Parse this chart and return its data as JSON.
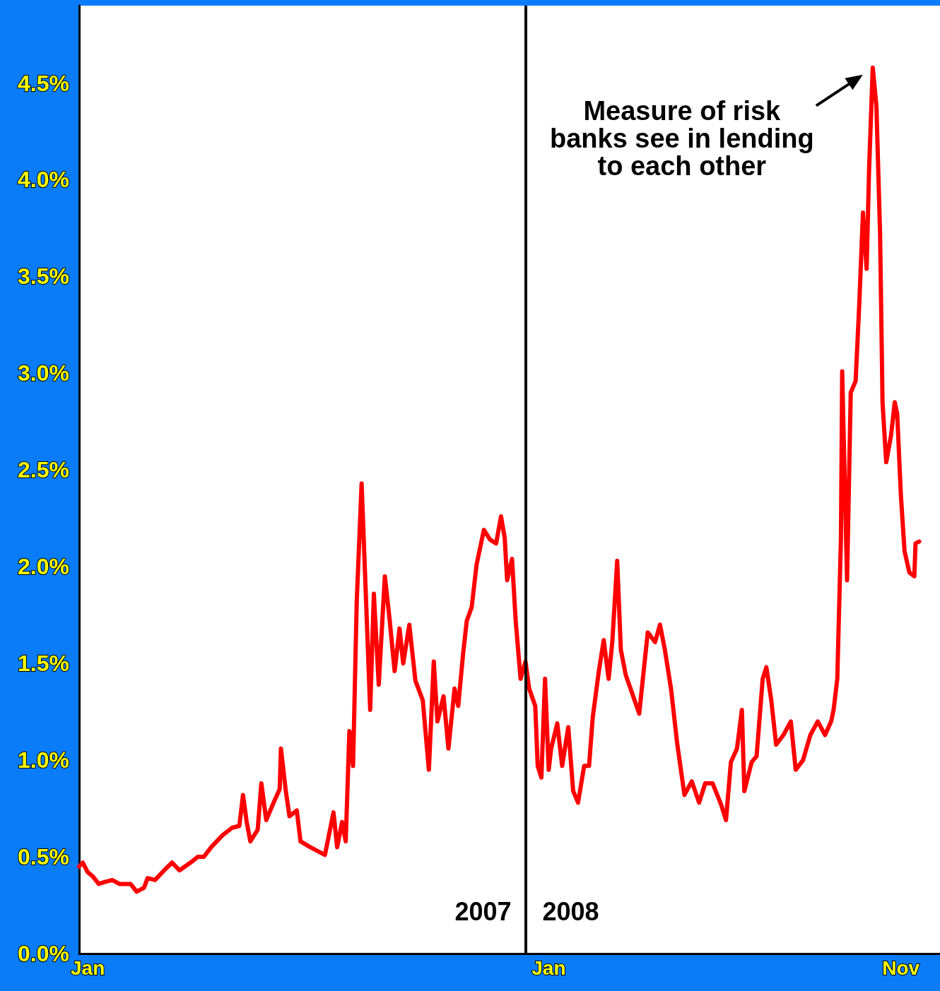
{
  "chart_data": {
    "type": "line",
    "color": "#ff0000",
    "marker": "none",
    "line_style": "solid",
    "grid": false,
    "x": [
      "2007-01-01",
      "2007-01-04",
      "2007-01-08",
      "2007-01-12",
      "2007-01-17",
      "2007-01-22",
      "2007-01-28",
      "2007-02-03",
      "2007-02-12",
      "2007-02-17",
      "2007-02-23",
      "2007-02-26",
      "2007-03-04",
      "2007-03-13",
      "2007-03-18",
      "2007-03-24",
      "2007-04-02",
      "2007-04-08",
      "2007-04-13",
      "2007-04-19",
      "2007-04-28",
      "2007-05-06",
      "2007-05-12",
      "2007-05-15",
      "2007-05-18",
      "2007-05-21",
      "2007-05-27",
      "2007-05-30",
      "2007-06-03",
      "2007-06-09",
      "2007-06-14",
      "2007-06-15",
      "2007-06-19",
      "2007-06-22",
      "2007-06-28",
      "2007-07-01",
      "2007-07-09",
      "2007-07-21",
      "2007-07-28",
      "2007-07-31",
      "2007-08-04",
      "2007-08-07",
      "2007-08-10",
      "2007-08-13",
      "2007-08-16",
      "2007-08-20",
      "2007-08-23",
      "2007-08-27",
      "2007-08-30",
      "2007-09-03",
      "2007-09-08",
      "2007-09-12",
      "2007-09-16",
      "2007-09-20",
      "2007-09-23",
      "2007-09-28",
      "2007-10-03",
      "2007-10-09",
      "2007-10-14",
      "2007-10-18",
      "2007-10-21",
      "2007-10-26",
      "2007-10-30",
      "2007-11-04",
      "2007-11-07",
      "2007-11-11",
      "2007-11-14",
      "2007-11-18",
      "2007-11-22",
      "2007-11-28",
      "2007-12-03",
      "2007-12-08",
      "2007-12-12",
      "2007-12-15",
      "2007-12-17",
      "2007-12-21",
      "2007-12-24",
      "2007-12-28",
      "2008-01-01",
      "2008-01-04",
      "2008-01-09",
      "2008-01-11",
      "2008-01-14",
      "2008-01-17",
      "2008-01-20",
      "2008-01-22",
      "2008-01-27",
      "2008-01-31",
      "2008-02-05",
      "2008-02-09",
      "2008-02-13",
      "2008-02-18",
      "2008-02-22",
      "2008-02-25",
      "2008-03-01",
      "2008-03-05",
      "2008-03-09",
      "2008-03-12",
      "2008-03-16",
      "2008-03-19",
      "2008-03-23",
      "2008-03-28",
      "2008-04-03",
      "2008-04-07",
      "2008-04-10",
      "2008-04-16",
      "2008-04-20",
      "2008-04-24",
      "2008-04-29",
      "2008-05-04",
      "2008-05-10",
      "2008-05-16",
      "2008-05-22",
      "2008-05-27",
      "2008-06-02",
      "2008-06-09",
      "2008-06-13",
      "2008-06-17",
      "2008-06-22",
      "2008-06-26",
      "2008-06-28",
      "2008-07-04",
      "2008-07-08",
      "2008-07-13",
      "2008-07-16",
      "2008-07-20",
      "2008-07-24",
      "2008-07-30",
      "2008-08-05",
      "2008-08-09",
      "2008-08-15",
      "2008-08-21",
      "2008-08-27",
      "2008-09-02",
      "2008-09-07",
      "2008-09-09",
      "2008-09-12",
      "2008-09-15",
      "2008-09-16",
      "2008-09-20",
      "2008-09-23",
      "2008-09-27",
      "2008-09-30",
      "2008-10-03",
      "2008-10-06",
      "2008-10-08",
      "2008-10-11",
      "2008-10-14",
      "2008-10-17",
      "2008-10-19",
      "2008-10-22",
      "2008-10-26",
      "2008-10-29",
      "2008-10-31",
      "2008-11-03",
      "2008-11-06",
      "2008-11-10",
      "2008-11-14",
      "2008-11-15",
      "2008-11-18"
    ],
    "values": [
      0.45,
      0.47,
      0.42,
      0.4,
      0.36,
      0.37,
      0.38,
      0.36,
      0.36,
      0.32,
      0.34,
      0.39,
      0.38,
      0.44,
      0.47,
      0.43,
      0.47,
      0.5,
      0.5,
      0.55,
      0.61,
      0.65,
      0.66,
      0.82,
      0.68,
      0.58,
      0.64,
      0.88,
      0.69,
      0.78,
      0.85,
      1.06,
      0.84,
      0.71,
      0.74,
      0.58,
      0.55,
      0.51,
      0.73,
      0.55,
      0.68,
      0.58,
      1.15,
      0.97,
      1.82,
      2.43,
      1.93,
      1.26,
      1.86,
      1.39,
      1.95,
      1.72,
      1.46,
      1.68,
      1.5,
      1.7,
      1.41,
      1.31,
      0.95,
      1.51,
      1.2,
      1.33,
      1.06,
      1.37,
      1.28,
      1.55,
      1.72,
      1.79,
      2.01,
      2.19,
      2.14,
      2.12,
      2.26,
      2.15,
      1.93,
      2.04,
      1.72,
      1.42,
      1.51,
      1.37,
      1.28,
      0.97,
      0.91,
      1.42,
      0.95,
      1.06,
      1.19,
      0.97,
      1.17,
      0.84,
      0.78,
      0.97,
      0.97,
      1.22,
      1.46,
      1.62,
      1.42,
      1.61,
      2.03,
      1.57,
      1.44,
      1.35,
      1.24,
      1.48,
      1.66,
      1.61,
      1.7,
      1.57,
      1.37,
      1.09,
      0.82,
      0.89,
      0.78,
      0.88,
      0.88,
      0.77,
      0.69,
      0.99,
      1.06,
      1.26,
      0.84,
      0.99,
      1.02,
      1.42,
      1.48,
      1.31,
      1.08,
      1.13,
      1.2,
      0.95,
      1.0,
      1.13,
      1.2,
      1.13,
      1.2,
      1.26,
      1.42,
      2.15,
      3.01,
      1.93,
      2.9,
      2.96,
      3.36,
      3.83,
      3.54,
      4.05,
      4.58,
      4.38,
      3.72,
      2.85,
      2.54,
      2.68,
      2.85,
      2.79,
      2.37,
      2.08,
      1.97,
      1.95,
      2.12,
      2.13
    ],
    "xlim": [
      "2007-01-01",
      "2008-12-05"
    ],
    "xticks": [
      {
        "value": "2007-01-08",
        "label": "Jan"
      },
      {
        "value": "2008-01-20",
        "label": "Jan"
      },
      {
        "value": "2008-11-03",
        "label": "Nov"
      }
    ],
    "ylim": [
      0,
      4.9
    ],
    "yticks": [
      {
        "value": 0,
        "label": "0.0%"
      },
      {
        "value": 0.5,
        "label": "0.5%"
      },
      {
        "value": 1,
        "label": "1.0%"
      },
      {
        "value": 1.5,
        "label": "1.5%"
      },
      {
        "value": 2,
        "label": "2.0%"
      },
      {
        "value": 2.5,
        "label": "2.5%"
      },
      {
        "value": 3,
        "label": "3.0%"
      },
      {
        "value": 3.5,
        "label": "3.5%"
      },
      {
        "value": 4,
        "label": "4.0%"
      },
      {
        "value": 4.5,
        "label": "4.5%"
      }
    ],
    "ref_lines": [
      {
        "axis": "x",
        "value": "2008-01-01",
        "color": "#000000"
      }
    ],
    "annotations": [
      {
        "text": "Measure of risk\nbanks see in lending\nto each other",
        "x": "2008-10-11",
        "y": 4.58
      },
      "2007",
      "2008"
    ]
  }
}
